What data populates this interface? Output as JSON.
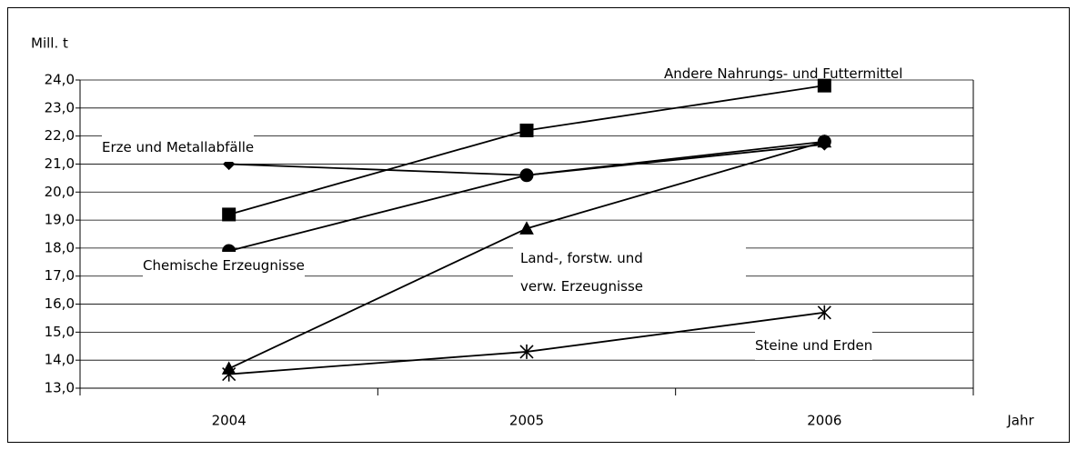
{
  "chart_data": {
    "type": "line",
    "ylabel": "Mill. t",
    "xlabel": "Jahr",
    "categories": [
      "2004",
      "2005",
      "2006"
    ],
    "series": [
      {
        "name": "Erze und  Metallabfälle",
        "color": "#000000",
        "values": [
          21.0,
          20.6,
          21.7
        ]
      },
      {
        "name": "Andere Nahrungs- und Futtermittel",
        "color": "#000000",
        "values": [
          19.2,
          22.2,
          23.8
        ]
      },
      {
        "name": "Chemische Erzeugnisse",
        "color": "#000000",
        "values": [
          17.9,
          20.6,
          21.8
        ]
      },
      {
        "name": "Land-, forstw. und verw. Erzeugnisse",
        "color": "#000000",
        "values": [
          13.7,
          18.7,
          21.8
        ]
      },
      {
        "name": "Steine und Erden",
        "color": "#000000",
        "values": [
          13.5,
          14.3,
          15.7
        ]
      }
    ],
    "ylim": [
      13,
      24
    ],
    "yticks": [
      {
        "value": 13,
        "label": "13,0"
      },
      {
        "value": 14,
        "label": "14,0"
      },
      {
        "value": 15,
        "label": "15,0"
      },
      {
        "value": 16,
        "label": "16,0"
      },
      {
        "value": 17,
        "label": "17,0"
      },
      {
        "value": 18,
        "label": "18,0"
      },
      {
        "value": 19,
        "label": "19,0"
      },
      {
        "value": 20,
        "label": "20,0"
      },
      {
        "value": 21,
        "label": "21,0"
      },
      {
        "value": 22,
        "label": "22,0"
      },
      {
        "value": 23,
        "label": "23,0"
      },
      {
        "value": 24,
        "label": "24,0"
      }
    ],
    "grid": true
  }
}
